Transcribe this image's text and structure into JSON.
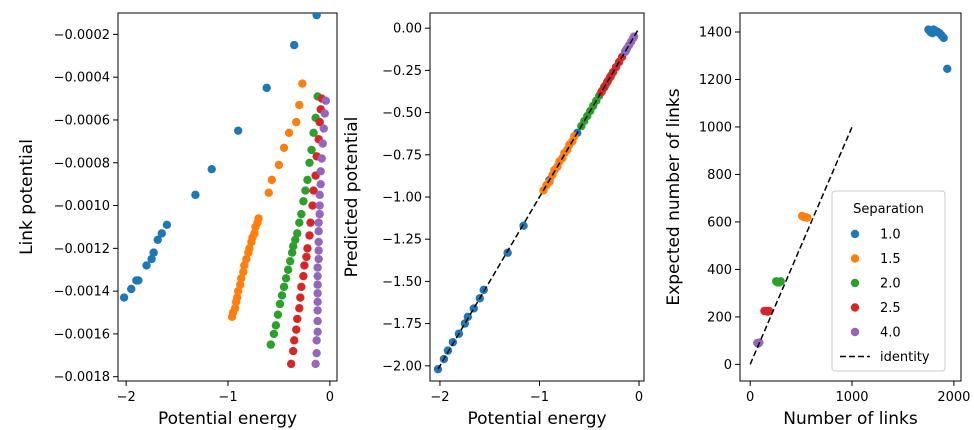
{
  "colors": {
    "1.0": "#1f77b4",
    "1.5": "#ff7f0e",
    "2.0": "#2ca02c",
    "2.5": "#d62728",
    "4.0": "#9467bd",
    "identity": "#000000"
  },
  "chart_data": [
    {
      "type": "scatter",
      "xlabel": "Potential energy",
      "ylabel": "Link potential",
      "xlim": [
        -2.08,
        0.07
      ],
      "ylim": [
        -0.00182,
        -0.0001
      ],
      "xticks": [
        -2,
        -1,
        0
      ],
      "xtick_labels": [
        "−2",
        "−1",
        "0"
      ],
      "yticks": [
        -0.0002,
        -0.0004,
        -0.0006,
        -0.0008,
        -0.001,
        -0.0012,
        -0.0014,
        -0.0016,
        -0.0018
      ],
      "ytick_labels": [
        "−0.0002",
        "−0.0004",
        "−0.0006",
        "−0.0008",
        "−0.0010",
        "−0.0012",
        "−0.0014",
        "−0.0016",
        "−0.0018"
      ],
      "series": [
        {
          "key": "1.0",
          "points": [
            [
              -2.02,
              -0.00143
            ],
            [
              -1.95,
              -0.00139
            ],
            [
              -1.9,
              -0.00135
            ],
            [
              -1.88,
              -0.00135
            ],
            [
              -1.8,
              -0.00128
            ],
            [
              -1.75,
              -0.00125
            ],
            [
              -1.73,
              -0.00122
            ],
            [
              -1.69,
              -0.00116
            ],
            [
              -1.65,
              -0.00113
            ],
            [
              -1.6,
              -0.00109
            ],
            [
              -1.32,
              -0.00095
            ],
            [
              -1.16,
              -0.00083
            ],
            [
              -0.9,
              -0.00065
            ],
            [
              -0.62,
              -0.00045
            ],
            [
              -0.35,
              -0.00025
            ],
            [
              -0.13,
              -0.00011
            ]
          ]
        },
        {
          "key": "1.5",
          "points": [
            [
              -0.96,
              -0.00152
            ],
            [
              -0.95,
              -0.0015
            ],
            [
              -0.93,
              -0.00148
            ],
            [
              -0.92,
              -0.00145
            ],
            [
              -0.91,
              -0.00143
            ],
            [
              -0.9,
              -0.0014
            ],
            [
              -0.88,
              -0.00137
            ],
            [
              -0.87,
              -0.00134
            ],
            [
              -0.85,
              -0.00131
            ],
            [
              -0.84,
              -0.00128
            ],
            [
              -0.82,
              -0.00125
            ],
            [
              -0.8,
              -0.00122
            ],
            [
              -0.79,
              -0.0012
            ],
            [
              -0.77,
              -0.00117
            ],
            [
              -0.76,
              -0.00115
            ],
            [
              -0.74,
              -0.00113
            ],
            [
              -0.73,
              -0.0011
            ],
            [
              -0.71,
              -0.00108
            ],
            [
              -0.7,
              -0.00106
            ],
            [
              -0.6,
              -0.00094
            ],
            [
              -0.57,
              -0.00088
            ],
            [
              -0.5,
              -0.00081
            ],
            [
              -0.45,
              -0.00073
            ],
            [
              -0.4,
              -0.00066
            ],
            [
              -0.33,
              -0.00061
            ],
            [
              -0.3,
              -0.00053
            ],
            [
              -0.27,
              -0.00043
            ]
          ]
        },
        {
          "key": "2.0",
          "points": [
            [
              -0.58,
              -0.00165
            ],
            [
              -0.55,
              -0.0016
            ],
            [
              -0.53,
              -0.00156
            ],
            [
              -0.51,
              -0.00151
            ],
            [
              -0.49,
              -0.00146
            ],
            [
              -0.47,
              -0.00142
            ],
            [
              -0.45,
              -0.00138
            ],
            [
              -0.43,
              -0.00134
            ],
            [
              -0.41,
              -0.0013
            ],
            [
              -0.39,
              -0.00126
            ],
            [
              -0.37,
              -0.00122
            ],
            [
              -0.36,
              -0.00119
            ],
            [
              -0.34,
              -0.00116
            ],
            [
              -0.32,
              -0.00113
            ],
            [
              -0.3,
              -0.00108
            ],
            [
              -0.28,
              -0.00104
            ],
            [
              -0.26,
              -0.00098
            ],
            [
              -0.24,
              -0.00093
            ],
            [
              -0.22,
              -0.00088
            ],
            [
              -0.2,
              -0.0008
            ],
            [
              -0.18,
              -0.00074
            ],
            [
              -0.16,
              -0.00066
            ],
            [
              -0.14,
              -0.00059
            ],
            [
              -0.12,
              -0.00049
            ]
          ]
        },
        {
          "key": "2.5",
          "points": [
            [
              -0.38,
              -0.00174
            ],
            [
              -0.36,
              -0.00168
            ],
            [
              -0.35,
              -0.00163
            ],
            [
              -0.33,
              -0.00158
            ],
            [
              -0.32,
              -0.00153
            ],
            [
              -0.3,
              -0.00148
            ],
            [
              -0.29,
              -0.00143
            ],
            [
              -0.28,
              -0.00138
            ],
            [
              -0.26,
              -0.00133
            ],
            [
              -0.25,
              -0.00128
            ],
            [
              -0.23,
              -0.00124
            ],
            [
              -0.22,
              -0.0012
            ],
            [
              -0.2,
              -0.00114
            ],
            [
              -0.19,
              -0.00108
            ],
            [
              -0.17,
              -0.001
            ],
            [
              -0.16,
              -0.00093
            ],
            [
              -0.14,
              -0.00086
            ],
            [
              -0.13,
              -0.00077
            ],
            [
              -0.11,
              -0.00069
            ],
            [
              -0.1,
              -0.00061
            ],
            [
              -0.09,
              -0.00055
            ],
            [
              -0.08,
              -0.0005
            ]
          ]
        },
        {
          "key": "4.0",
          "points": [
            [
              -0.14,
              -0.00174
            ],
            [
              -0.13,
              -0.00169
            ],
            [
              -0.13,
              -0.00163
            ],
            [
              -0.12,
              -0.00159
            ],
            [
              -0.12,
              -0.00154
            ],
            [
              -0.12,
              -0.00149
            ],
            [
              -0.12,
              -0.00145
            ],
            [
              -0.12,
              -0.00141
            ],
            [
              -0.12,
              -0.00137
            ],
            [
              -0.12,
              -0.00133
            ],
            [
              -0.12,
              -0.00129
            ],
            [
              -0.11,
              -0.00125
            ],
            [
              -0.11,
              -0.00121
            ],
            [
              -0.11,
              -0.00117
            ],
            [
              -0.11,
              -0.00112
            ],
            [
              -0.11,
              -0.00108
            ],
            [
              -0.1,
              -0.00104
            ],
            [
              -0.1,
              -0.001
            ],
            [
              -0.1,
              -0.00095
            ],
            [
              -0.09,
              -0.0009
            ],
            [
              -0.09,
              -0.00084
            ],
            [
              -0.08,
              -0.00078
            ],
            [
              -0.07,
              -0.00071
            ],
            [
              -0.06,
              -0.00064
            ],
            [
              -0.05,
              -0.00057
            ],
            [
              -0.04,
              -0.00051
            ]
          ]
        }
      ]
    },
    {
      "type": "scatter",
      "xlabel": "Potential energy",
      "ylabel": "Predicted potential",
      "xlim": [
        -2.1,
        0.05
      ],
      "ylim": [
        -2.09,
        0.09
      ],
      "xticks": [
        -2,
        -1,
        0
      ],
      "xtick_labels": [
        "−2",
        "−1",
        "0"
      ],
      "yticks": [
        0,
        -0.25,
        -0.5,
        -0.75,
        -1.0,
        -1.25,
        -1.5,
        -1.75,
        -2.0
      ],
      "ytick_labels": [
        "0.00",
        "−0.25",
        "−0.50",
        "−0.75",
        "−1.00",
        "−1.25",
        "−1.50",
        "−1.75",
        "−2.00"
      ],
      "line": {
        "key": "identity",
        "from": [
          -2.02,
          -2.02
        ],
        "to": [
          0,
          0
        ],
        "style": "dashed"
      },
      "series": [
        {
          "key": "1.0",
          "points": [
            [
              -2.02,
              -2.02
            ],
            [
              -1.96,
              -1.96
            ],
            [
              -1.92,
              -1.91
            ],
            [
              -1.87,
              -1.86
            ],
            [
              -1.81,
              -1.81
            ],
            [
              -1.75,
              -1.75
            ],
            [
              -1.72,
              -1.71
            ],
            [
              -1.66,
              -1.66
            ],
            [
              -1.6,
              -1.6
            ],
            [
              -1.56,
              -1.55
            ],
            [
              -1.32,
              -1.33
            ],
            [
              -1.16,
              -1.17
            ],
            [
              -0.9,
              -0.9
            ],
            [
              -0.62,
              -0.62
            ],
            [
              -0.35,
              -0.35
            ],
            [
              -0.13,
              -0.13
            ]
          ]
        },
        {
          "key": "1.5",
          "points": [
            [
              -0.96,
              -0.96
            ],
            [
              -0.93,
              -0.93
            ],
            [
              -0.9,
              -0.91
            ],
            [
              -0.87,
              -0.87
            ],
            [
              -0.85,
              -0.84
            ],
            [
              -0.82,
              -0.82
            ],
            [
              -0.8,
              -0.79
            ],
            [
              -0.77,
              -0.77
            ],
            [
              -0.75,
              -0.74
            ],
            [
              -0.72,
              -0.72
            ],
            [
              -0.7,
              -0.69
            ],
            [
              -0.67,
              -0.67
            ],
            [
              -0.65,
              -0.64
            ]
          ]
        },
        {
          "key": "2.0",
          "points": [
            [
              -0.58,
              -0.58
            ],
            [
              -0.55,
              -0.55
            ],
            [
              -0.52,
              -0.52
            ],
            [
              -0.49,
              -0.49
            ],
            [
              -0.46,
              -0.46
            ],
            [
              -0.43,
              -0.43
            ],
            [
              -0.4,
              -0.4
            ],
            [
              -0.37,
              -0.37
            ],
            [
              -0.34,
              -0.34
            ],
            [
              -0.31,
              -0.31
            ],
            [
              -0.28,
              -0.28
            ]
          ]
        },
        {
          "key": "2.5",
          "points": [
            [
              -0.38,
              -0.38
            ],
            [
              -0.35,
              -0.35
            ],
            [
              -0.32,
              -0.32
            ],
            [
              -0.29,
              -0.29
            ],
            [
              -0.26,
              -0.26
            ],
            [
              -0.23,
              -0.23
            ],
            [
              -0.2,
              -0.2
            ],
            [
              -0.17,
              -0.17
            ],
            [
              -0.14,
              -0.14
            ]
          ]
        },
        {
          "key": "4.0",
          "points": [
            [
              -0.14,
              -0.14
            ],
            [
              -0.12,
              -0.12
            ],
            [
              -0.1,
              -0.1
            ],
            [
              -0.08,
              -0.08
            ],
            [
              -0.06,
              -0.06
            ],
            [
              -0.05,
              -0.05
            ]
          ]
        }
      ]
    },
    {
      "type": "scatter",
      "xlabel": "Number of links",
      "ylabel": "Expected number of links",
      "xlim": [
        -100,
        2070
      ],
      "ylim": [
        -70,
        1480
      ],
      "xticks": [
        0,
        1000,
        2000
      ],
      "xtick_labels": [
        "0",
        "1000",
        "2000"
      ],
      "yticks": [
        0,
        200,
        400,
        600,
        800,
        1000,
        1200,
        1400
      ],
      "ytick_labels": [
        "0",
        "200",
        "400",
        "600",
        "800",
        "1000",
        "1200",
        "1400"
      ],
      "line": {
        "key": "identity",
        "from": [
          0,
          0
        ],
        "to": [
          1000,
          1000
        ],
        "style": "dashed"
      },
      "series": [
        {
          "key": "1.0",
          "points": [
            [
              1750,
              1410
            ],
            [
              1770,
              1400
            ],
            [
              1790,
              1395
            ],
            [
              1800,
              1410
            ],
            [
              1820,
              1405
            ],
            [
              1840,
              1400
            ],
            [
              1860,
              1395
            ],
            [
              1880,
              1385
            ],
            [
              1900,
              1375
            ],
            [
              1935,
              1245
            ]
          ]
        },
        {
          "key": "1.5",
          "points": [
            [
              510,
              625
            ],
            [
              530,
              620
            ],
            [
              545,
              620
            ],
            [
              560,
              618
            ]
          ]
        },
        {
          "key": "2.0",
          "points": [
            [
              255,
              350
            ],
            [
              270,
              345
            ],
            [
              285,
              345
            ],
            [
              300,
              350
            ]
          ]
        },
        {
          "key": "2.5",
          "points": [
            [
              140,
              225
            ],
            [
              155,
              225
            ],
            [
              170,
              222
            ],
            [
              185,
              225
            ]
          ]
        },
        {
          "key": "4.0",
          "points": [
            [
              70,
              90
            ],
            [
              80,
              88
            ],
            [
              90,
              92
            ]
          ]
        }
      ],
      "legend": {
        "title": "Separation",
        "placement": "bottom-right",
        "entries": [
          {
            "key": "1.0",
            "label": "1.0",
            "marker": "circle"
          },
          {
            "key": "1.5",
            "label": "1.5",
            "marker": "circle"
          },
          {
            "key": "2.0",
            "label": "2.0",
            "marker": "circle"
          },
          {
            "key": "2.5",
            "label": "2.5",
            "marker": "circle"
          },
          {
            "key": "4.0",
            "label": "4.0",
            "marker": "circle"
          },
          {
            "key": "identity",
            "label": "identity",
            "marker": "dashed-line"
          }
        ]
      }
    }
  ]
}
